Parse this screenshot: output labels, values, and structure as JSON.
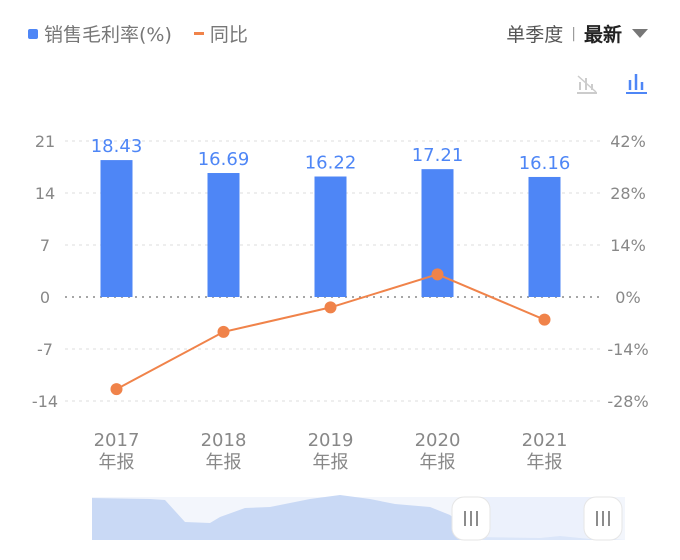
{
  "legend": {
    "bar_label": "销售毛利率(%)",
    "line_label": "同比"
  },
  "controls": {
    "period": "单季度",
    "separator": "|",
    "selected": "最新"
  },
  "icons": {
    "line_toggle": "line-chart-off-icon",
    "bar_toggle": "bar-chart-icon"
  },
  "colors": {
    "bar": "#4e86f6",
    "line": "#f0834a"
  },
  "chart_data": {
    "type": "bar+line",
    "categories": [
      "2017\n年报",
      "2018\n年报",
      "2019\n年报",
      "2020\n年报",
      "2021\n年报"
    ],
    "category_lines": [
      [
        "2017",
        "年报"
      ],
      [
        "2018",
        "年报"
      ],
      [
        "2019",
        "年报"
      ],
      [
        "2020",
        "年报"
      ],
      [
        "2021",
        "年报"
      ]
    ],
    "series": [
      {
        "name": "销售毛利率(%)",
        "type": "bar",
        "axis": "left",
        "values": [
          18.43,
          16.69,
          16.22,
          17.21,
          16.16
        ],
        "labels": [
          "18.43",
          "16.69",
          "16.22",
          "17.21",
          "16.16"
        ]
      },
      {
        "name": "同比",
        "type": "line",
        "axis": "right",
        "values": [
          -24.8,
          -9.4,
          -2.8,
          6.1,
          -6.1
        ]
      }
    ],
    "left_axis": {
      "ylim": [
        -14,
        21
      ],
      "ticks": [
        "21",
        "14",
        "7",
        "0",
        "-7",
        "-14"
      ]
    },
    "right_axis": {
      "ylim": [
        -28,
        42
      ],
      "ticks": [
        "42%",
        "28%",
        "14%",
        "0%",
        "-14%",
        "-28%"
      ]
    },
    "grid": true
  }
}
